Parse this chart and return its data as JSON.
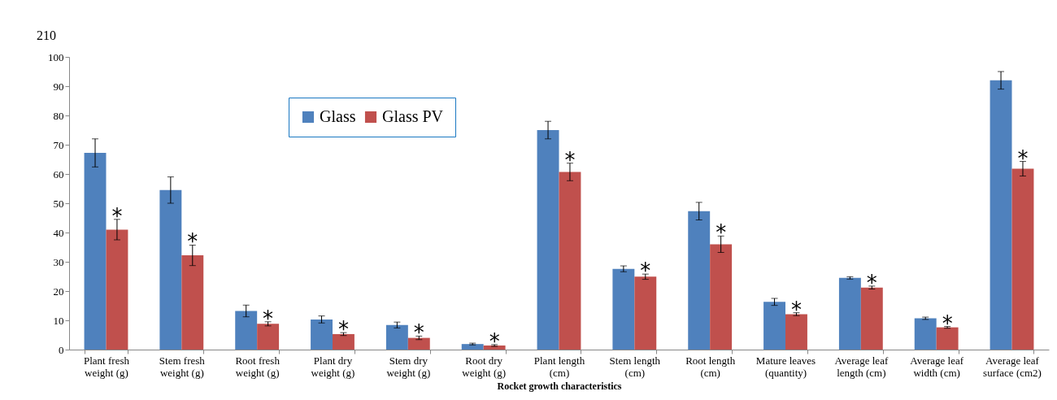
{
  "chart_data": {
    "type": "bar",
    "xlabel": "Rocket growth characteristics",
    "categories": [
      "Plant fresh weight (g)",
      "Stem fresh weight (g)",
      "Root fresh weight (g)",
      "Plant dry weight (g)",
      "Stem dry weight (g)",
      "Root dry weight (g)",
      "Plant length (cm)",
      "Stem length (cm)",
      "Root length (cm)",
      "Mature leaves (quantity)",
      "Average leaf length (cm)",
      "Average leaf width (cm)",
      "Average leaf surface (cm2)"
    ],
    "series": [
      {
        "name": "Glass",
        "color": "#4f81bd",
        "values": [
          67.2,
          54.5,
          13.2,
          10.3,
          8.4,
          1.9,
          75,
          27.6,
          47.3,
          16.3,
          24.5,
          10.7,
          92
        ],
        "errors": [
          4.8,
          4.5,
          2,
          1.2,
          1,
          0.3,
          3,
          1,
          3,
          1.2,
          0.4,
          0.4,
          3
        ]
      },
      {
        "name": "Glass PV",
        "color": "#c0504d",
        "values": [
          41,
          32.2,
          8.8,
          5.3,
          4,
          1.4,
          60.7,
          24.9,
          36,
          12.1,
          21.2,
          7.6,
          61.8
        ],
        "errors": [
          3.5,
          3.5,
          0.7,
          0.5,
          0.6,
          0.3,
          3,
          0.9,
          2.8,
          0.5,
          0.5,
          0.3,
          2.5
        ],
        "value_labels": [
          "*",
          "*",
          "*",
          "*",
          "*",
          "*",
          "*",
          "*",
          "*",
          "*",
          "*",
          "*",
          "*"
        ]
      }
    ],
    "ylim": [
      0,
      100
    ],
    "yticks": [
      0,
      10,
      20,
      30,
      40,
      50,
      60,
      70,
      80,
      90,
      100
    ],
    "grid": false,
    "legend": "top left",
    "annotations": [
      "210"
    ]
  }
}
